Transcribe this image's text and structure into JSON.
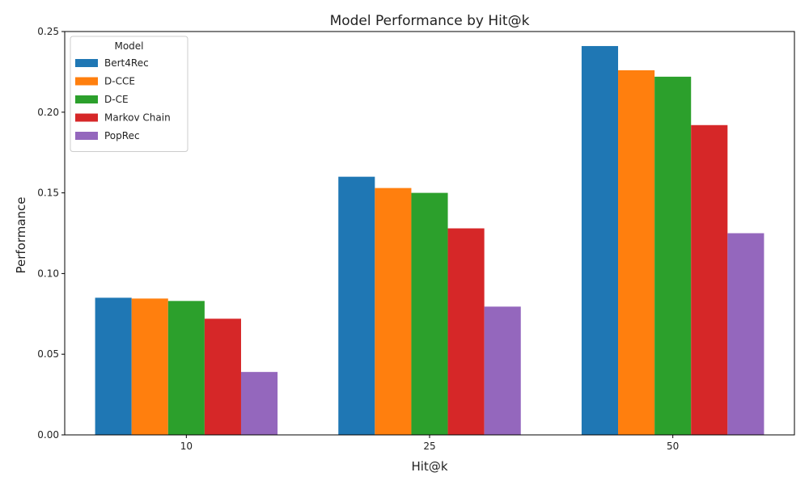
{
  "chart_data": {
    "type": "bar",
    "title": "Model Performance by Hit@k",
    "xlabel": "Hit@k",
    "ylabel": "Performance",
    "categories": [
      "10",
      "25",
      "50"
    ],
    "ylim": [
      0,
      0.25
    ],
    "yticks": [
      0.0,
      0.05,
      0.1,
      0.15,
      0.2,
      0.25
    ],
    "ytick_labels": [
      "0.00",
      "0.05",
      "0.10",
      "0.15",
      "0.20",
      "0.25"
    ],
    "grid": false,
    "legend": {
      "title": "Model",
      "placement": "top-left"
    },
    "series": [
      {
        "name": "Bert4Rec",
        "color": "#1f77b4",
        "values": [
          0.085,
          0.16,
          0.241
        ]
      },
      {
        "name": "D-CCE",
        "color": "#ff7f0e",
        "values": [
          0.0845,
          0.153,
          0.226
        ]
      },
      {
        "name": "D-CE",
        "color": "#2ca02c",
        "values": [
          0.083,
          0.15,
          0.222
        ]
      },
      {
        "name": "Markov Chain",
        "color": "#d62728",
        "values": [
          0.072,
          0.128,
          0.192
        ]
      },
      {
        "name": "PopRec",
        "color": "#9467bd",
        "values": [
          0.039,
          0.0795,
          0.125
        ]
      }
    ]
  }
}
